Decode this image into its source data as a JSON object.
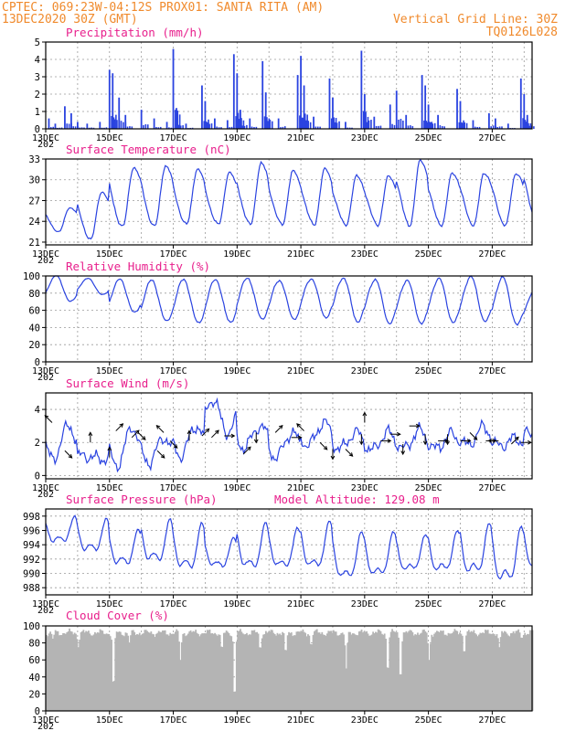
{
  "header": {
    "line1": "CPTEC:   069:23W-04:12S   PROX01: SANTA RITA (AM)",
    "line2_left": "13DEC2020 30Z (GMT)",
    "line2_right": "Vertical Grid Line: 30Z",
    "line3_right": "TQ0126L028"
  },
  "colors": {
    "header": "#f08a2c",
    "panel_title": "#e81f8c",
    "series": "#2a43e0",
    "cloud": "#b4b4b4",
    "wind_arrow": "#000000"
  },
  "x_axis": {
    "tick_labels": [
      "13DEC",
      "15DEC",
      "17DEC",
      "19DEC",
      "21DEC",
      "23DEC",
      "25DEC",
      "27DEC"
    ],
    "year_label": "202",
    "start_day": 13.0,
    "end_day": 28.25
  },
  "chart_data": [
    {
      "id": "precip",
      "type": "bar",
      "title": "Precipitation (mm/h)",
      "ylim": [
        0,
        5
      ],
      "yticks": [
        0,
        1,
        2,
        3,
        4,
        5
      ],
      "spikes": [
        [
          13.1,
          0.6
        ],
        [
          13.3,
          0.3
        ],
        [
          13.6,
          1.3
        ],
        [
          13.8,
          0.9
        ],
        [
          14.0,
          0.4
        ],
        [
          14.3,
          0.3
        ],
        [
          14.7,
          0.4
        ],
        [
          15.0,
          3.4
        ],
        [
          15.1,
          3.2
        ],
        [
          15.3,
          1.8
        ],
        [
          15.5,
          0.8
        ],
        [
          16.0,
          1.1
        ],
        [
          16.4,
          0.6
        ],
        [
          16.8,
          0.4
        ],
        [
          17.0,
          4.6
        ],
        [
          17.1,
          1.2
        ],
        [
          17.4,
          0.3
        ],
        [
          17.9,
          2.5
        ],
        [
          18.0,
          1.6
        ],
        [
          18.3,
          0.6
        ],
        [
          18.7,
          0.5
        ],
        [
          18.9,
          4.3
        ],
        [
          19.0,
          3.2
        ],
        [
          19.1,
          1.1
        ],
        [
          19.4,
          0.6
        ],
        [
          19.8,
          3.9
        ],
        [
          19.9,
          2.1
        ],
        [
          20.3,
          0.6
        ],
        [
          20.9,
          3.1
        ],
        [
          21.0,
          4.2
        ],
        [
          21.1,
          2.5
        ],
        [
          21.4,
          0.7
        ],
        [
          21.9,
          2.9
        ],
        [
          22.0,
          1.8
        ],
        [
          22.4,
          0.4
        ],
        [
          22.9,
          4.5
        ],
        [
          23.0,
          2.0
        ],
        [
          23.3,
          0.7
        ],
        [
          23.8,
          1.4
        ],
        [
          24.0,
          2.2
        ],
        [
          24.3,
          0.8
        ],
        [
          24.8,
          3.1
        ],
        [
          24.9,
          2.5
        ],
        [
          25.0,
          1.4
        ],
        [
          25.3,
          0.8
        ],
        [
          25.9,
          2.3
        ],
        [
          26.0,
          1.6
        ],
        [
          26.4,
          0.5
        ],
        [
          26.9,
          0.9
        ],
        [
          27.1,
          0.6
        ],
        [
          27.5,
          0.3
        ],
        [
          27.9,
          2.9
        ],
        [
          28.0,
          2.0
        ],
        [
          28.1,
          0.8
        ]
      ]
    },
    {
      "id": "temp",
      "type": "line",
      "title": "Surface Temperature (nC)",
      "ylim": [
        20.6,
        33
      ],
      "ytick_values": [
        21,
        24,
        27,
        30,
        33
      ],
      "ytick_labels": [
        "21",
        "24",
        "27",
        "30",
        "33"
      ],
      "daily_min": [
        22.5,
        21.4,
        23.2,
        23.2,
        23.5,
        23.5,
        23.5,
        23.5,
        23.5,
        23.5,
        23.5,
        23.5,
        23.5,
        23.5,
        23.5,
        24.2
      ],
      "daily_max": [
        26.0,
        28.3,
        31.8,
        32.0,
        31.5,
        31.0,
        32.3,
        31.2,
        31.5,
        30.5,
        30.5,
        32.8,
        31.0,
        31.0,
        31.0,
        32.5
      ]
    },
    {
      "id": "rh",
      "type": "line",
      "title": "Relative Humidity (%)",
      "ylim": [
        0,
        100
      ],
      "yticks": [
        0,
        20,
        40,
        60,
        80,
        100
      ],
      "daily_min": [
        70,
        78,
        57,
        47,
        45,
        46,
        50,
        50,
        52,
        47,
        45,
        45,
        46,
        47,
        43,
        46
      ],
      "daily_max": [
        100,
        97,
        96,
        95,
        96,
        96,
        98,
        95,
        97,
        98,
        96,
        95,
        97,
        99,
        98,
        82
      ]
    },
    {
      "id": "wind",
      "type": "line",
      "title": "Surface Wind (m/s)",
      "ylim": [
        -0.2,
        5.0
      ],
      "yticks": [
        0,
        2,
        4
      ],
      "noon_speed": [
        3.0,
        1.0,
        2.9,
        2.3,
        3.0,
        2.6,
        3.0,
        2.6,
        3.2,
        2.6,
        2.6,
        2.7,
        2.5,
        2.9,
        2.2,
        3.0
      ],
      "night_speed": [
        1.0,
        1.2,
        0.6,
        0.8,
        1.2,
        4.6,
        1.7,
        1.1,
        1.8,
        1.6,
        1.5,
        1.6,
        1.6,
        1.8,
        1.8,
        2.4
      ],
      "arrows": [
        [
          13.2,
          3.2,
          "up-left"
        ],
        [
          13.6,
          1.5,
          "down-right"
        ],
        [
          14.4,
          2.0,
          "up"
        ],
        [
          15.0,
          1.1,
          "up"
        ],
        [
          15.2,
          2.7,
          "up-right"
        ],
        [
          15.7,
          2.3,
          "up-right"
        ],
        [
          15.9,
          2.6,
          "down-right"
        ],
        [
          16.5,
          1.5,
          "down-right"
        ],
        [
          16.7,
          2.6,
          "up-left"
        ],
        [
          16.9,
          2.1,
          "down-right"
        ],
        [
          17.5,
          2.1,
          "up"
        ],
        [
          17.9,
          2.4,
          "up-right"
        ],
        [
          18.2,
          2.3,
          "up-right"
        ],
        [
          18.6,
          2.4,
          "right"
        ],
        [
          19.2,
          1.3,
          "up-right"
        ],
        [
          19.6,
          2.6,
          "down"
        ],
        [
          20.2,
          2.6,
          "up-right"
        ],
        [
          20.7,
          2.3,
          "right"
        ],
        [
          21.1,
          2.7,
          "up-left"
        ],
        [
          21.6,
          2.0,
          "down-right"
        ],
        [
          22.0,
          1.6,
          "down"
        ],
        [
          22.4,
          1.6,
          "down-right"
        ],
        [
          22.9,
          2.5,
          "down"
        ],
        [
          23.0,
          3.2,
          "up"
        ],
        [
          23.5,
          2.1,
          "right"
        ],
        [
          23.8,
          2.5,
          "right"
        ],
        [
          24.2,
          1.9,
          "down"
        ],
        [
          24.4,
          3.0,
          "right"
        ],
        [
          24.9,
          2.5,
          "down"
        ],
        [
          25.3,
          2.1,
          "right"
        ],
        [
          25.6,
          2.5,
          "down"
        ],
        [
          26.0,
          2.1,
          "right"
        ],
        [
          26.3,
          2.6,
          "down-right"
        ],
        [
          26.8,
          2.1,
          "right"
        ],
        [
          27.2,
          2.1,
          "left"
        ],
        [
          27.6,
          1.9,
          "up-right"
        ],
        [
          27.9,
          2.0,
          "right"
        ]
      ]
    },
    {
      "id": "pressure",
      "type": "line",
      "title": "Surface Pressure (hPa)",
      "ylim": [
        987,
        999
      ],
      "yticks": [
        988,
        990,
        992,
        994,
        996,
        998
      ],
      "daily_min": [
        993.5,
        992.0,
        990.0,
        990.2,
        989.0,
        989.8,
        989.0,
        989.3,
        989.0,
        987.5,
        988.0,
        989.0,
        988.8,
        988.2,
        987.0,
        989.5
      ],
      "daily_max": [
        997.8,
        997.5,
        996.0,
        997.5,
        997.0,
        995.0,
        997.2,
        996.5,
        997.5,
        996.0,
        996.0,
        995.5,
        996.0,
        997.0,
        996.5,
        996.5
      ]
    },
    {
      "id": "cloud",
      "type": "area",
      "title": "Cloud Cover (%)",
      "ylim": [
        0,
        100
      ],
      "yticks": [
        0,
        20,
        40,
        60,
        80,
        100
      ],
      "typical_value": 92,
      "dips": [
        [
          13.2,
          85
        ],
        [
          14.0,
          75
        ],
        [
          15.1,
          18
        ],
        [
          15.6,
          80
        ],
        [
          17.2,
          60
        ],
        [
          18.5,
          70
        ],
        [
          18.9,
          3
        ],
        [
          19.7,
          70
        ],
        [
          20.5,
          65
        ],
        [
          21.3,
          75
        ],
        [
          22.4,
          50
        ],
        [
          23.7,
          40
        ],
        [
          24.1,
          30
        ],
        [
          25.0,
          60
        ],
        [
          26.1,
          65
        ],
        [
          27.2,
          75
        ],
        [
          27.9,
          85
        ]
      ]
    }
  ],
  "model_altitude": "Model Altitude: 129.08 m"
}
